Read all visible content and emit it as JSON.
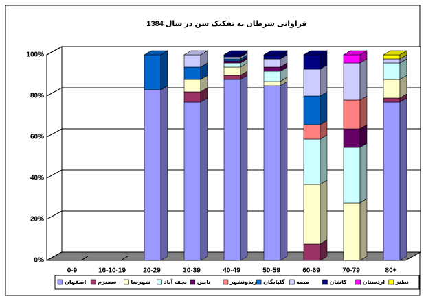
{
  "chart_data": {
    "type": "bar",
    "stacked": true,
    "title": "فراوانی سرطان به تفکیک سن در سال 1384",
    "categories": [
      "0-9",
      "16-10-19",
      "20-29",
      "30-39",
      "40-49",
      "50-59",
      "60-69",
      "70-79",
      "80+"
    ],
    "ylim": [
      0,
      100
    ],
    "yticks": [
      {
        "value": 0,
        "label": "0%"
      },
      {
        "value": 20,
        "label": "20%"
      },
      {
        "value": 40,
        "label": "40%"
      },
      {
        "value": 60,
        "label": "60%"
      },
      {
        "value": 80,
        "label": "80%"
      },
      {
        "value": 100,
        "label": "100%"
      }
    ],
    "grid": true,
    "legend": "bottom",
    "series": [
      {
        "name": "اصفهان",
        "color": "#9999ff",
        "values": [
          0,
          0,
          83,
          77,
          88,
          85,
          0,
          0,
          77
        ]
      },
      {
        "name": "سمیرم",
        "color": "#993366",
        "values": [
          0,
          0,
          0,
          5,
          2,
          0,
          8,
          0,
          2
        ]
      },
      {
        "name": "شهرضا",
        "color": "#ffffcc",
        "values": [
          0,
          0,
          0,
          6,
          4,
          2,
          29,
          28,
          9
        ]
      },
      {
        "name": "نجف آباد",
        "color": "#ccffff",
        "values": [
          0,
          0,
          0,
          0,
          2,
          5,
          22,
          27,
          8
        ]
      },
      {
        "name": "نایین",
        "color": "#660066",
        "values": [
          0,
          0,
          0,
          0,
          1,
          2,
          0,
          9,
          0
        ]
      },
      {
        "name": "فریدونشهر",
        "color": "#ff8080",
        "values": [
          0,
          0,
          0,
          0,
          0,
          0,
          7,
          14,
          0
        ]
      },
      {
        "name": "گلپایگان",
        "color": "#0066cc",
        "values": [
          0,
          0,
          17,
          6,
          1,
          0,
          14,
          0,
          0
        ]
      },
      {
        "name": "میمه",
        "color": "#ccccff",
        "values": [
          0,
          0,
          0,
          6,
          1,
          4,
          13,
          18,
          2
        ]
      },
      {
        "name": "کاشان",
        "color": "#000080",
        "values": [
          0,
          0,
          0,
          0,
          1,
          2,
          7,
          0,
          0
        ]
      },
      {
        "name": "اردستان",
        "color": "#ff00ff",
        "values": [
          0,
          0,
          0,
          0,
          0,
          0,
          0,
          4,
          0
        ]
      },
      {
        "name": "نطنز",
        "color": "#ffff00",
        "values": [
          0,
          0,
          0,
          0,
          0,
          0,
          0,
          0,
          2
        ]
      }
    ]
  }
}
